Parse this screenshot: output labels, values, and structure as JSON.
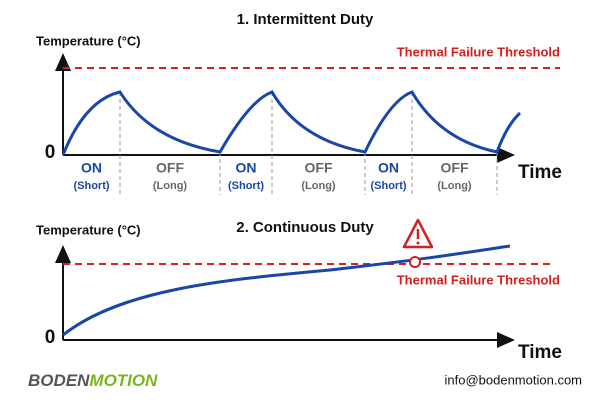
{
  "panels": [
    {
      "title": "1. Intermittent Duty",
      "y_label": "Temperature (°C)",
      "threshold_label": "Thermal Failure Threshold",
      "origin_label": "0",
      "x_label": "Time",
      "phases": [
        {
          "state": "ON",
          "duration": "(Short)"
        },
        {
          "state": "OFF",
          "duration": "(Long)"
        },
        {
          "state": "ON",
          "duration": "(Short)"
        },
        {
          "state": "OFF",
          "duration": "(Long)"
        },
        {
          "state": "ON",
          "duration": "(Short)"
        },
        {
          "state": "OFF",
          "duration": "(Long)"
        }
      ]
    },
    {
      "title": "2. Continuous Duty",
      "y_label": "Temperature (°C)",
      "threshold_label": "Thermal Failure Threshold",
      "origin_label": "0",
      "x_label": "Time"
    }
  ],
  "footer": {
    "logo": {
      "first": "BODEN",
      "second": "MOTION"
    },
    "email": "info@bodenmotion.com"
  }
}
